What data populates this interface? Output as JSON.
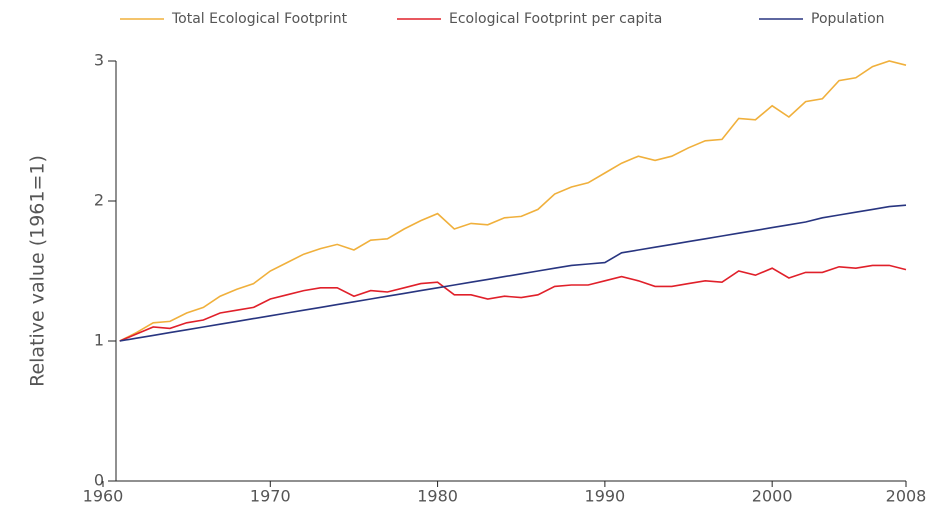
{
  "chart_data": {
    "type": "line",
    "y_label": "Relative value (1961=1)",
    "x": [
      1961,
      1962,
      1963,
      1964,
      1965,
      1966,
      1967,
      1968,
      1969,
      1970,
      1971,
      1972,
      1973,
      1974,
      1975,
      1976,
      1977,
      1978,
      1979,
      1980,
      1981,
      1982,
      1983,
      1984,
      1985,
      1986,
      1987,
      1988,
      1989,
      1990,
      1991,
      1992,
      1993,
      1994,
      1995,
      1996,
      1997,
      1998,
      1999,
      2000,
      2001,
      2002,
      2003,
      2004,
      2005,
      2006,
      2007,
      2008
    ],
    "series": [
      {
        "name": "Total Ecological Footprint",
        "color": "#f0b03c",
        "values": [
          1.0,
          1.06,
          1.13,
          1.14,
          1.2,
          1.24,
          1.32,
          1.37,
          1.41,
          1.5,
          1.56,
          1.62,
          1.66,
          1.69,
          1.65,
          1.72,
          1.73,
          1.8,
          1.86,
          1.91,
          1.8,
          1.84,
          1.83,
          1.88,
          1.89,
          1.94,
          2.05,
          2.1,
          2.13,
          2.2,
          2.27,
          2.32,
          2.29,
          2.32,
          2.38,
          2.43,
          2.44,
          2.59,
          2.58,
          2.68,
          2.6,
          2.71,
          2.73,
          2.86,
          2.88,
          2.96,
          3.0,
          2.97
        ]
      },
      {
        "name": "Ecological Footprint per capita",
        "color": "#e0202a",
        "values": [
          1.0,
          1.05,
          1.1,
          1.09,
          1.13,
          1.15,
          1.2,
          1.22,
          1.24,
          1.3,
          1.33,
          1.36,
          1.38,
          1.38,
          1.32,
          1.36,
          1.35,
          1.38,
          1.41,
          1.42,
          1.33,
          1.33,
          1.3,
          1.32,
          1.31,
          1.33,
          1.39,
          1.4,
          1.4,
          1.43,
          1.46,
          1.43,
          1.39,
          1.39,
          1.41,
          1.43,
          1.42,
          1.5,
          1.47,
          1.52,
          1.45,
          1.49,
          1.49,
          1.53,
          1.52,
          1.54,
          1.54,
          1.51
        ]
      },
      {
        "name": "Population",
        "color": "#283580",
        "values": [
          1.0,
          1.02,
          1.04,
          1.06,
          1.08,
          1.1,
          1.12,
          1.14,
          1.16,
          1.18,
          1.2,
          1.22,
          1.24,
          1.26,
          1.28,
          1.3,
          1.32,
          1.34,
          1.36,
          1.38,
          1.4,
          1.42,
          1.44,
          1.46,
          1.48,
          1.5,
          1.52,
          1.54,
          1.55,
          1.56,
          1.63,
          1.65,
          1.67,
          1.69,
          1.71,
          1.73,
          1.75,
          1.77,
          1.79,
          1.81,
          1.83,
          1.85,
          1.88,
          1.9,
          1.92,
          1.94,
          1.96,
          1.97
        ]
      }
    ],
    "xlim": [
      1960,
      2008
    ],
    "xticks": [
      1960,
      1970,
      1980,
      1990,
      2000,
      2008
    ],
    "ylim": [
      0,
      3
    ],
    "yticks": [
      0,
      1,
      2,
      3
    ],
    "legend": "top"
  }
}
